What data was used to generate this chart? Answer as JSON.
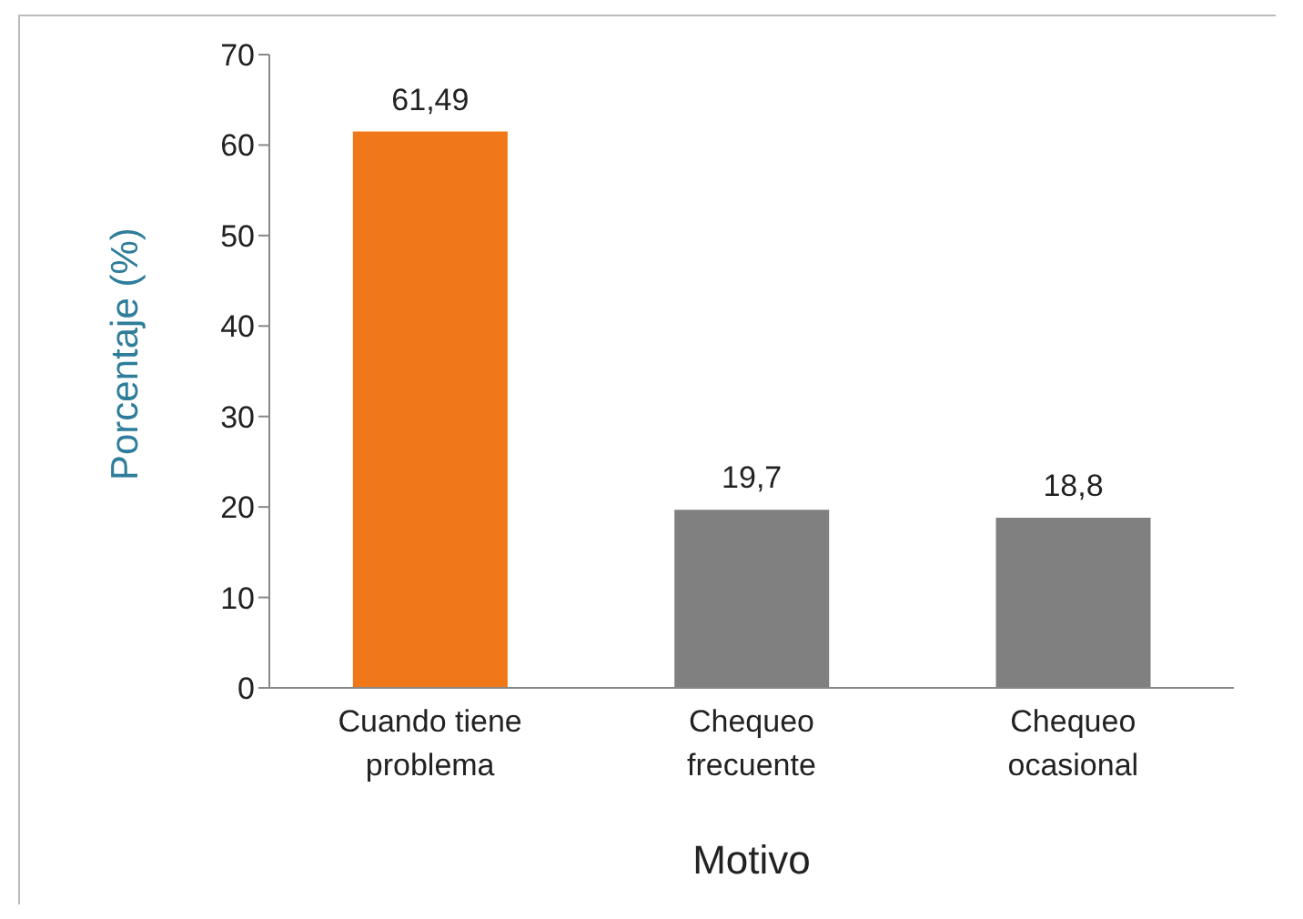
{
  "chart_data": {
    "type": "bar",
    "xlabel": "Motivo",
    "ylabel": "Porcentaje (%)",
    "categories": [
      "Cuando tiene problema",
      "Chequeo frecuente",
      "Chequeo ocasional"
    ],
    "values": [
      61.49,
      19.7,
      18.8
    ],
    "colors": [
      "#f07818",
      "#808080",
      "#808080"
    ],
    "value_labels": [
      "61,49",
      "19,7",
      "18,8"
    ],
    "ylim": [
      0,
      70
    ],
    "yticks": [
      0,
      10,
      20,
      30,
      40,
      50,
      60,
      70
    ],
    "grid": false,
    "legend": false
  }
}
